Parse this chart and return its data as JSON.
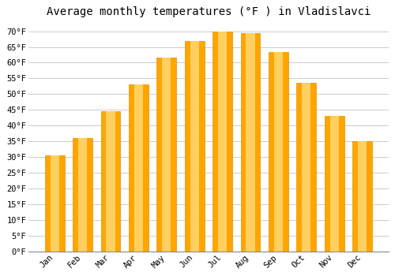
{
  "title": "Average monthly temperatures (°F ) in Vladislavci",
  "months": [
    "Jan",
    "Feb",
    "Mar",
    "Apr",
    "May",
    "Jun",
    "Jul",
    "Aug",
    "Sep",
    "Oct",
    "Nov",
    "Dec"
  ],
  "values": [
    30.5,
    36,
    44.5,
    53,
    61.5,
    67,
    70,
    69.5,
    63.5,
    53.5,
    43,
    35
  ],
  "bar_color_main": "#FFA500",
  "bar_color_light": "#FFD060",
  "bar_color_edge": "#E89000",
  "ylim": [
    0,
    73
  ],
  "yticks": [
    0,
    5,
    10,
    15,
    20,
    25,
    30,
    35,
    40,
    45,
    50,
    55,
    60,
    65,
    70
  ],
  "background_color": "#FFFFFF",
  "grid_color": "#CCCCCC",
  "title_fontsize": 10,
  "tick_fontsize": 7.5,
  "font_family": "monospace"
}
